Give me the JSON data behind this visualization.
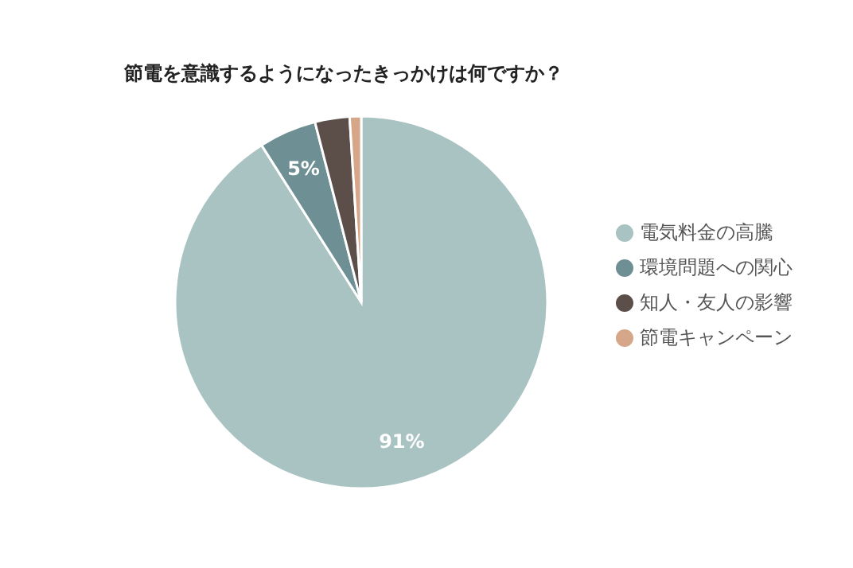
{
  "chart_data": {
    "type": "pie",
    "title": "節電を意識するようになったきっかけは何ですか？",
    "categories": [
      "電気料金の高騰",
      "環境問題への関心",
      "知人・友人の影響",
      "節電キャンペーン"
    ],
    "values": [
      91,
      5,
      3,
      1
    ],
    "colors": [
      "#a9c3c2",
      "#6e8f93",
      "#5c4f49",
      "#d6a688"
    ],
    "value_labels": [
      "91%",
      "5%",
      null,
      null
    ],
    "legend": "right"
  }
}
